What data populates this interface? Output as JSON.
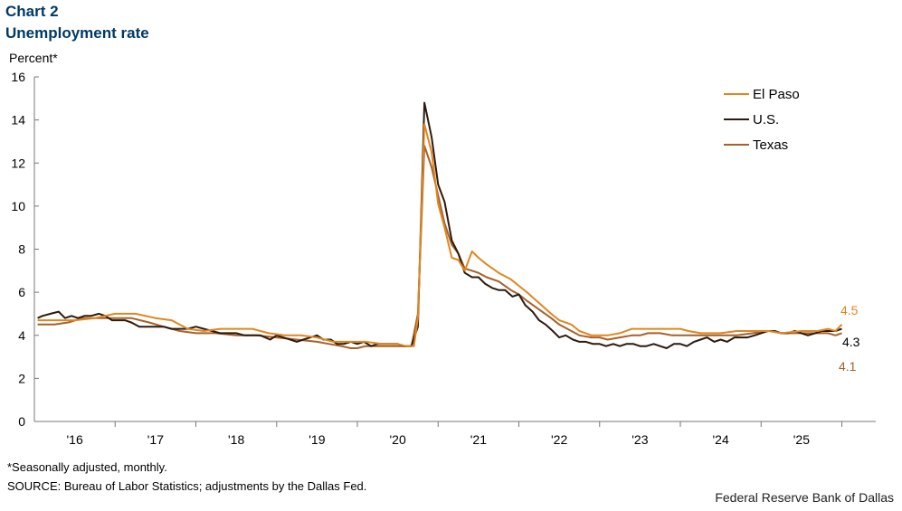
{
  "header": {
    "chart_number": "Chart 2",
    "title": "Unemployment rate"
  },
  "footer": {
    "note": "*Seasonally adjusted, monthly.",
    "source": "SOURCE: Bureau of Labor Statistics; adjustments by the Dallas Fed.",
    "credit": "Federal Reserve Bank of Dallas"
  },
  "colors": {
    "el_paso": "#E0861F",
    "us": "#2B1A0E",
    "texas": "#A5612B",
    "axis": "#777777"
  },
  "chart_data": {
    "type": "line",
    "ylabel": "Percent*",
    "ylim": [
      0,
      16
    ],
    "yticks": [
      0,
      2,
      4,
      6,
      8,
      10,
      12,
      14,
      16
    ],
    "xlim": [
      2015.5,
      2025.92
    ],
    "year_ticks": [
      2016,
      2017,
      2018,
      2019,
      2020,
      2021,
      2022,
      2023,
      2024,
      2025
    ],
    "year_labels": [
      "'16",
      "'17",
      "'18",
      "'19",
      "'20",
      "'21",
      "'22",
      "'23",
      "'24",
      "'25"
    ],
    "grid": false,
    "legend": "top-right",
    "series": [
      {
        "name": "El Paso",
        "color_key": "el_paso",
        "end_label": "4.5",
        "points": [
          [
            2015.54,
            4.7
          ],
          [
            2015.75,
            4.7
          ],
          [
            2016.0,
            4.7
          ],
          [
            2016.25,
            4.8
          ],
          [
            2016.5,
            5.0
          ],
          [
            2016.75,
            5.0
          ],
          [
            2017.0,
            4.8
          ],
          [
            2017.2,
            4.7
          ],
          [
            2017.4,
            4.3
          ],
          [
            2017.6,
            4.2
          ],
          [
            2017.8,
            4.3
          ],
          [
            2018.0,
            4.3
          ],
          [
            2018.2,
            4.3
          ],
          [
            2018.4,
            4.1
          ],
          [
            2018.6,
            4.0
          ],
          [
            2018.8,
            4.0
          ],
          [
            2019.0,
            3.9
          ],
          [
            2019.2,
            3.7
          ],
          [
            2019.4,
            3.7
          ],
          [
            2019.6,
            3.7
          ],
          [
            2019.8,
            3.6
          ],
          [
            2020.0,
            3.6
          ],
          [
            2020.1,
            3.5
          ],
          [
            2020.2,
            3.5
          ],
          [
            2020.25,
            4.8
          ],
          [
            2020.33,
            13.8
          ],
          [
            2020.42,
            12.5
          ],
          [
            2020.5,
            10.1
          ],
          [
            2020.58,
            9.0
          ],
          [
            2020.67,
            7.6
          ],
          [
            2020.75,
            7.5
          ],
          [
            2020.83,
            7.0
          ],
          [
            2020.92,
            7.9
          ],
          [
            2021.0,
            7.6
          ],
          [
            2021.1,
            7.3
          ],
          [
            2021.25,
            6.9
          ],
          [
            2021.4,
            6.6
          ],
          [
            2021.5,
            6.3
          ],
          [
            2021.6,
            6.0
          ],
          [
            2021.75,
            5.5
          ],
          [
            2021.9,
            5.0
          ],
          [
            2022.0,
            4.7
          ],
          [
            2022.15,
            4.5
          ],
          [
            2022.25,
            4.2
          ],
          [
            2022.4,
            4.0
          ],
          [
            2022.5,
            4.0
          ],
          [
            2022.6,
            4.0
          ],
          [
            2022.75,
            4.1
          ],
          [
            2022.9,
            4.3
          ],
          [
            2023.0,
            4.3
          ],
          [
            2023.25,
            4.3
          ],
          [
            2023.5,
            4.3
          ],
          [
            2023.6,
            4.2
          ],
          [
            2023.75,
            4.1
          ],
          [
            2024.0,
            4.1
          ],
          [
            2024.2,
            4.2
          ],
          [
            2024.5,
            4.2
          ],
          [
            2024.6,
            4.2
          ],
          [
            2024.75,
            4.1
          ],
          [
            2025.0,
            4.2
          ],
          [
            2025.2,
            4.2
          ],
          [
            2025.33,
            4.3
          ],
          [
            2025.42,
            4.2
          ],
          [
            2025.5,
            4.5
          ]
        ]
      },
      {
        "name": "U.S.",
        "color_key": "us",
        "end_label": "4.3",
        "points": [
          [
            2015.54,
            4.8
          ],
          [
            2015.6,
            4.9
          ],
          [
            2015.7,
            5.0
          ],
          [
            2015.8,
            5.1
          ],
          [
            2015.88,
            4.8
          ],
          [
            2015.96,
            4.9
          ],
          [
            2016.04,
            4.8
          ],
          [
            2016.12,
            4.9
          ],
          [
            2016.2,
            4.9
          ],
          [
            2016.3,
            5.0
          ],
          [
            2016.38,
            4.9
          ],
          [
            2016.46,
            4.7
          ],
          [
            2016.54,
            4.7
          ],
          [
            2016.62,
            4.7
          ],
          [
            2016.7,
            4.6
          ],
          [
            2016.8,
            4.4
          ],
          [
            2016.9,
            4.4
          ],
          [
            2017.0,
            4.4
          ],
          [
            2017.1,
            4.4
          ],
          [
            2017.2,
            4.3
          ],
          [
            2017.3,
            4.3
          ],
          [
            2017.4,
            4.3
          ],
          [
            2017.5,
            4.4
          ],
          [
            2017.6,
            4.3
          ],
          [
            2017.7,
            4.2
          ],
          [
            2017.8,
            4.1
          ],
          [
            2017.9,
            4.1
          ],
          [
            2018.0,
            4.1
          ],
          [
            2018.1,
            4.0
          ],
          [
            2018.2,
            4.0
          ],
          [
            2018.3,
            4.0
          ],
          [
            2018.42,
            3.8
          ],
          [
            2018.5,
            4.0
          ],
          [
            2018.58,
            3.9
          ],
          [
            2018.67,
            3.8
          ],
          [
            2018.75,
            3.7
          ],
          [
            2018.83,
            3.8
          ],
          [
            2018.92,
            3.9
          ],
          [
            2019.0,
            4.0
          ],
          [
            2019.08,
            3.8
          ],
          [
            2019.17,
            3.8
          ],
          [
            2019.25,
            3.6
          ],
          [
            2019.33,
            3.6
          ],
          [
            2019.42,
            3.7
          ],
          [
            2019.5,
            3.6
          ],
          [
            2019.58,
            3.7
          ],
          [
            2019.67,
            3.5
          ],
          [
            2019.75,
            3.6
          ],
          [
            2019.83,
            3.6
          ],
          [
            2019.92,
            3.6
          ],
          [
            2020.0,
            3.6
          ],
          [
            2020.08,
            3.5
          ],
          [
            2020.17,
            3.5
          ],
          [
            2020.25,
            4.4
          ],
          [
            2020.33,
            14.8
          ],
          [
            2020.42,
            13.2
          ],
          [
            2020.5,
            11.0
          ],
          [
            2020.58,
            10.2
          ],
          [
            2020.67,
            8.4
          ],
          [
            2020.75,
            7.8
          ],
          [
            2020.83,
            6.9
          ],
          [
            2020.92,
            6.7
          ],
          [
            2021.0,
            6.7
          ],
          [
            2021.08,
            6.4
          ],
          [
            2021.17,
            6.2
          ],
          [
            2021.25,
            6.1
          ],
          [
            2021.33,
            6.1
          ],
          [
            2021.42,
            5.8
          ],
          [
            2021.5,
            5.9
          ],
          [
            2021.58,
            5.4
          ],
          [
            2021.67,
            5.1
          ],
          [
            2021.75,
            4.7
          ],
          [
            2021.83,
            4.5
          ],
          [
            2021.92,
            4.2
          ],
          [
            2022.0,
            3.9
          ],
          [
            2022.08,
            4.0
          ],
          [
            2022.17,
            3.8
          ],
          [
            2022.25,
            3.7
          ],
          [
            2022.33,
            3.7
          ],
          [
            2022.42,
            3.6
          ],
          [
            2022.5,
            3.6
          ],
          [
            2022.58,
            3.5
          ],
          [
            2022.67,
            3.6
          ],
          [
            2022.75,
            3.5
          ],
          [
            2022.83,
            3.6
          ],
          [
            2022.92,
            3.6
          ],
          [
            2023.0,
            3.5
          ],
          [
            2023.08,
            3.5
          ],
          [
            2023.17,
            3.6
          ],
          [
            2023.25,
            3.5
          ],
          [
            2023.33,
            3.4
          ],
          [
            2023.42,
            3.6
          ],
          [
            2023.5,
            3.6
          ],
          [
            2023.58,
            3.5
          ],
          [
            2023.67,
            3.7
          ],
          [
            2023.75,
            3.8
          ],
          [
            2023.83,
            3.9
          ],
          [
            2023.92,
            3.7
          ],
          [
            2024.0,
            3.8
          ],
          [
            2024.08,
            3.7
          ],
          [
            2024.17,
            3.9
          ],
          [
            2024.25,
            3.9
          ],
          [
            2024.33,
            3.9
          ],
          [
            2024.42,
            4.0
          ],
          [
            2024.5,
            4.1
          ],
          [
            2024.58,
            4.2
          ],
          [
            2024.67,
            4.2
          ],
          [
            2024.75,
            4.1
          ],
          [
            2024.83,
            4.1
          ],
          [
            2024.92,
            4.2
          ],
          [
            2025.0,
            4.1
          ],
          [
            2025.08,
            4.0
          ],
          [
            2025.17,
            4.1
          ],
          [
            2025.25,
            4.2
          ],
          [
            2025.33,
            4.2
          ],
          [
            2025.42,
            4.2
          ],
          [
            2025.5,
            4.3
          ]
        ]
      },
      {
        "name": "Texas",
        "color_key": "texas",
        "end_label": "4.1",
        "points": [
          [
            2015.54,
            4.5
          ],
          [
            2015.75,
            4.5
          ],
          [
            2015.92,
            4.6
          ],
          [
            2016.1,
            4.8
          ],
          [
            2016.3,
            4.8
          ],
          [
            2016.5,
            4.8
          ],
          [
            2016.7,
            4.8
          ],
          [
            2016.92,
            4.6
          ],
          [
            2017.1,
            4.4
          ],
          [
            2017.3,
            4.2
          ],
          [
            2017.5,
            4.1
          ],
          [
            2017.75,
            4.1
          ],
          [
            2018.0,
            4.0
          ],
          [
            2018.25,
            4.0
          ],
          [
            2018.5,
            3.9
          ],
          [
            2018.75,
            3.8
          ],
          [
            2019.0,
            3.7
          ],
          [
            2019.15,
            3.6
          ],
          [
            2019.3,
            3.5
          ],
          [
            2019.42,
            3.4
          ],
          [
            2019.5,
            3.4
          ],
          [
            2019.6,
            3.5
          ],
          [
            2019.75,
            3.5
          ],
          [
            2020.0,
            3.5
          ],
          [
            2020.17,
            3.5
          ],
          [
            2020.25,
            5.0
          ],
          [
            2020.33,
            12.8
          ],
          [
            2020.42,
            11.8
          ],
          [
            2020.5,
            10.5
          ],
          [
            2020.58,
            9.2
          ],
          [
            2020.67,
            8.2
          ],
          [
            2020.75,
            7.8
          ],
          [
            2020.83,
            7.1
          ],
          [
            2020.92,
            7.0
          ],
          [
            2021.0,
            6.9
          ],
          [
            2021.1,
            6.7
          ],
          [
            2021.25,
            6.5
          ],
          [
            2021.4,
            6.1
          ],
          [
            2021.5,
            5.9
          ],
          [
            2021.6,
            5.6
          ],
          [
            2021.75,
            5.2
          ],
          [
            2021.9,
            4.8
          ],
          [
            2022.0,
            4.5
          ],
          [
            2022.1,
            4.3
          ],
          [
            2022.25,
            4.0
          ],
          [
            2022.4,
            3.9
          ],
          [
            2022.5,
            3.9
          ],
          [
            2022.6,
            3.8
          ],
          [
            2022.75,
            3.9
          ],
          [
            2022.9,
            4.0
          ],
          [
            2023.0,
            4.0
          ],
          [
            2023.1,
            4.1
          ],
          [
            2023.25,
            4.1
          ],
          [
            2023.4,
            4.0
          ],
          [
            2023.5,
            4.0
          ],
          [
            2023.75,
            4.0
          ],
          [
            2024.0,
            4.0
          ],
          [
            2024.2,
            4.0
          ],
          [
            2024.4,
            4.1
          ],
          [
            2024.6,
            4.2
          ],
          [
            2024.75,
            4.1
          ],
          [
            2025.0,
            4.1
          ],
          [
            2025.2,
            4.1
          ],
          [
            2025.33,
            4.1
          ],
          [
            2025.42,
            4.0
          ],
          [
            2025.5,
            4.1
          ]
        ]
      }
    ]
  }
}
